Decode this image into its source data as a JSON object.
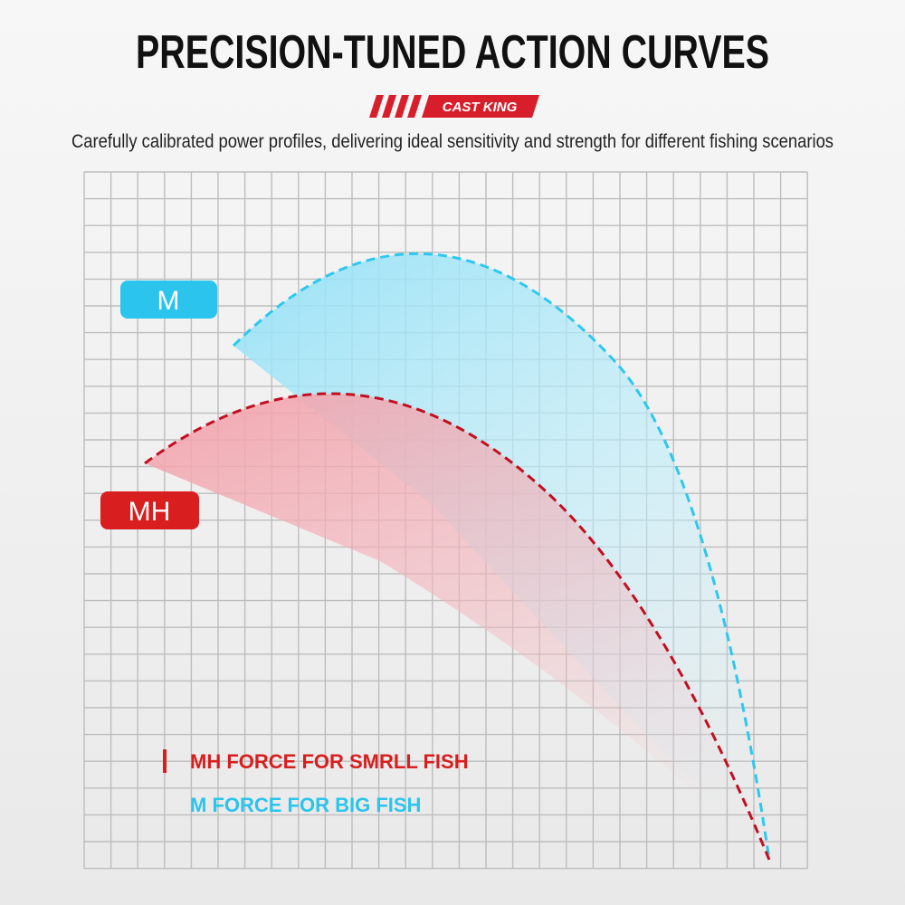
{
  "header": {
    "title": "PRECISION-TUNED ACTION CURVES",
    "brand": "CAST KING",
    "subtitle": "Carefully calibrated power profiles, delivering ideal sensitivity and strength for different fishing scenarios"
  },
  "curves": {
    "m_label": "M",
    "mh_label": "MH"
  },
  "legend": [
    "MH FORCE FOR SMRLL FISH",
    "M FORCE FOR BIG FISH"
  ]
}
